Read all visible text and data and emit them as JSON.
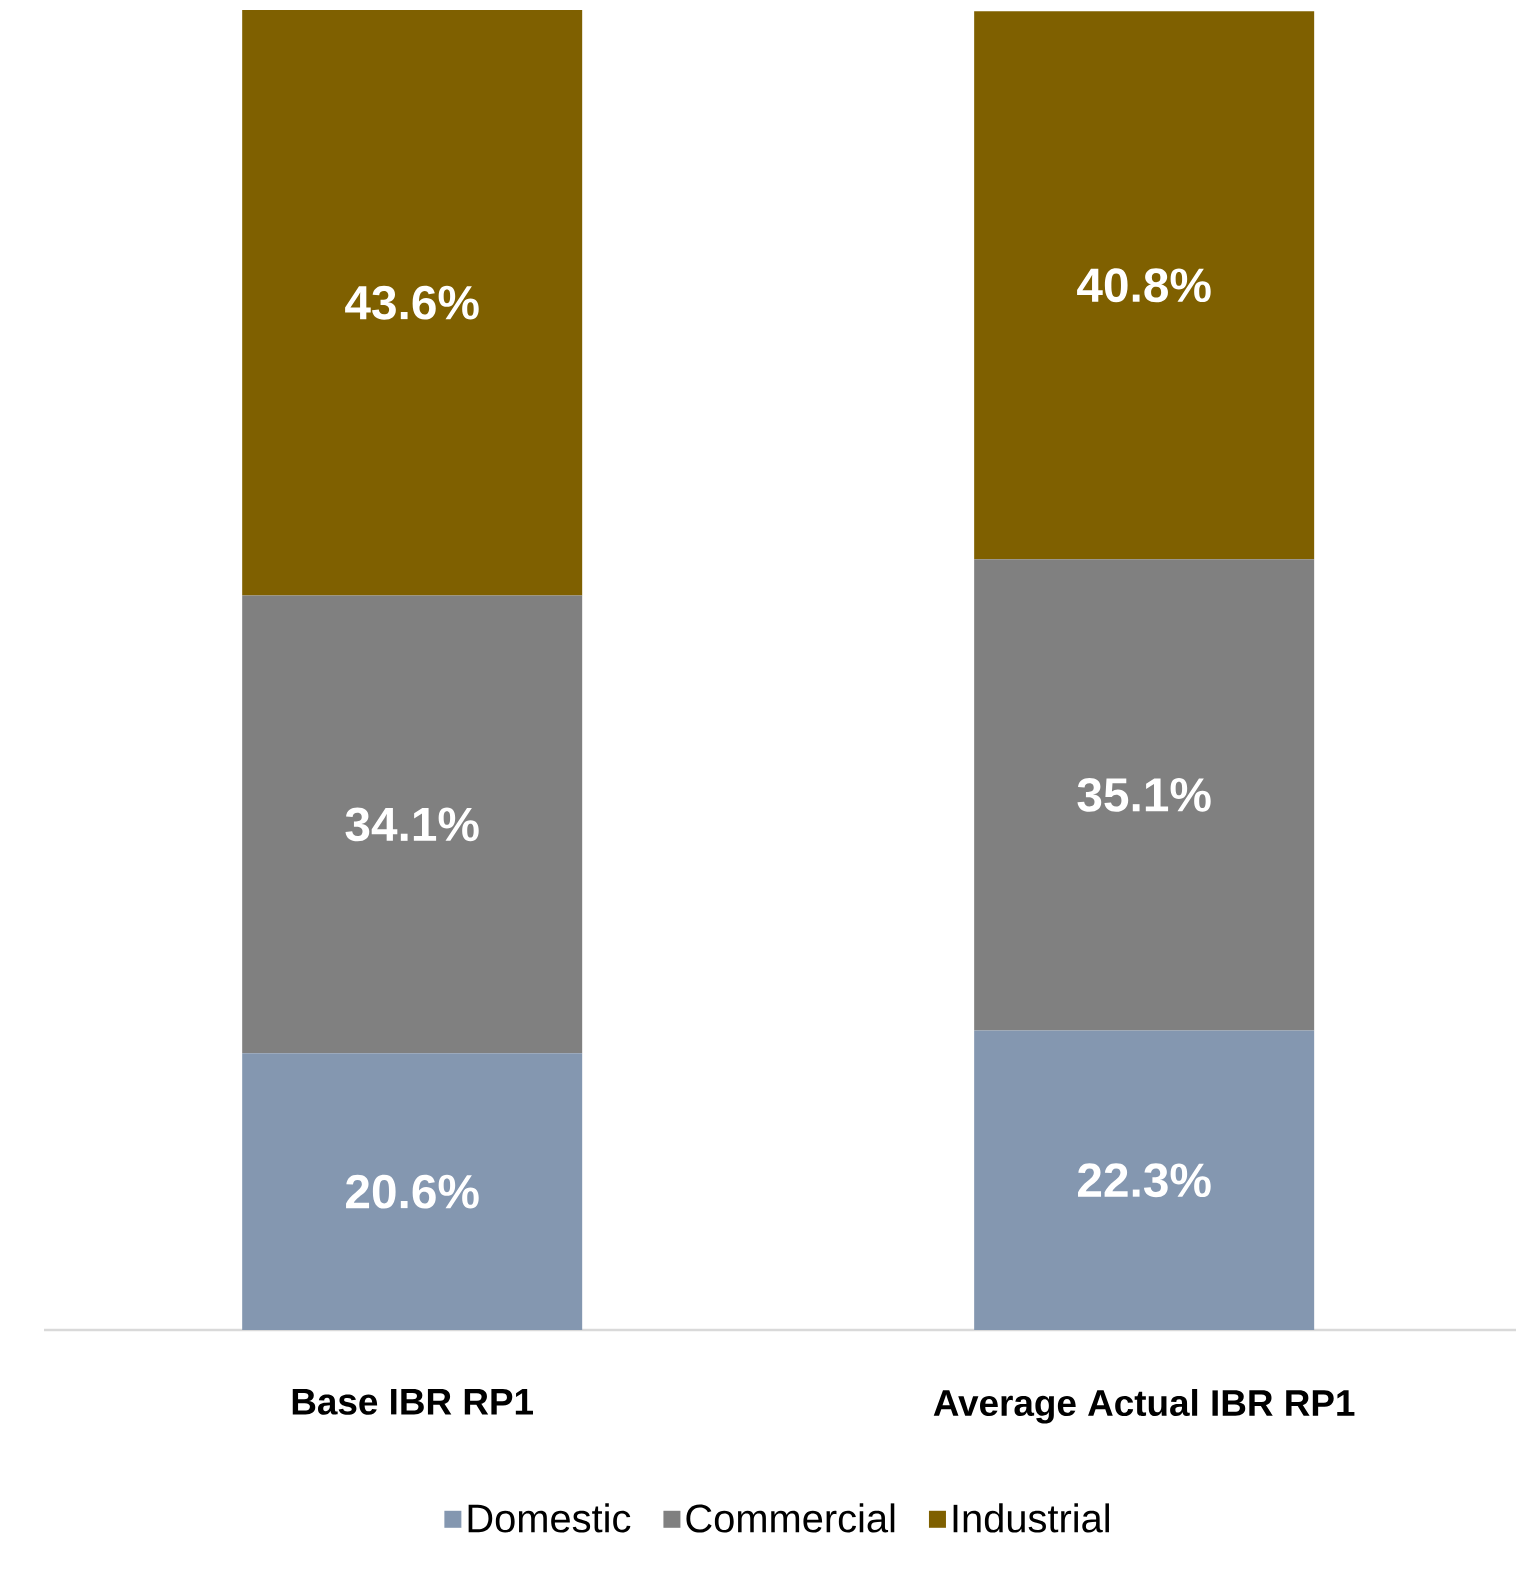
{
  "chart_data": {
    "type": "bar",
    "stacked": true,
    "categories": [
      "Base IBR RP1",
      "Average Actual IBR RP1"
    ],
    "series": [
      {
        "name": "Domestic",
        "color": "#8497b0",
        "values": [
          20.6,
          22.3
        ],
        "value_labels": [
          "20.6%",
          "22.3%"
        ]
      },
      {
        "name": "Commercial",
        "color": "#808080",
        "values": [
          34.1,
          35.1
        ],
        "value_labels": [
          "34.1%",
          "35.1%"
        ]
      },
      {
        "name": "Industrial",
        "color": "#7f6000",
        "values": [
          43.6,
          40.8
        ],
        "value_labels": [
          "43.6%",
          "40.8%"
        ]
      }
    ],
    "legend": "bottom"
  }
}
